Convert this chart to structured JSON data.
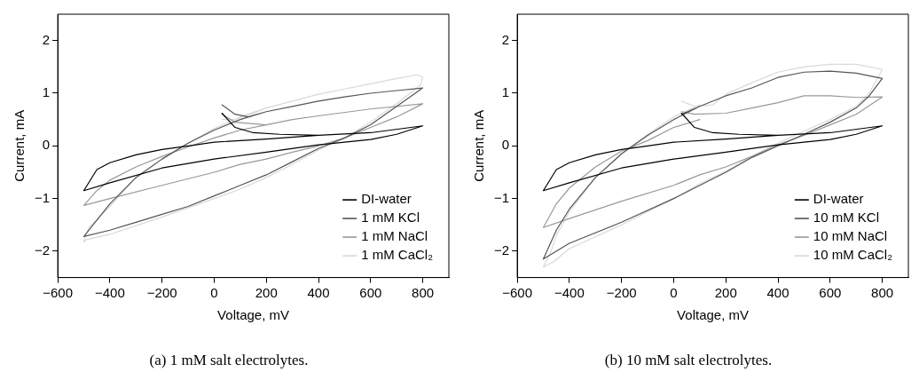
{
  "chart_data": [
    {
      "type": "line",
      "title": "(a) 1 mM salt electrolytes.",
      "xlabel": "Voltage, mV",
      "ylabel": "Current, mA",
      "xlim": [
        -600,
        900
      ],
      "xticks": [
        -600,
        -400,
        -200,
        0,
        200,
        400,
        600,
        800
      ],
      "ylim": [
        -2.5,
        2.5
      ],
      "yticks": [
        -2,
        -1,
        0,
        1,
        2
      ],
      "legend": "bottom right",
      "marker": "none",
      "line_style": "solid",
      "series": [
        {
          "name": "DI-water",
          "color": "#000000",
          "x": [
            30,
            80,
            150,
            250,
            400,
            600,
            800,
            700,
            600,
            400,
            200,
            0,
            -200,
            -400,
            -500,
            -450,
            -400,
            -300,
            -200,
            -100,
            0,
            200,
            400,
            600,
            800
          ],
          "values": [
            0.62,
            0.35,
            0.25,
            0.22,
            0.2,
            0.25,
            0.38,
            0.22,
            0.12,
            0.02,
            -0.12,
            -0.25,
            -0.42,
            -0.7,
            -0.85,
            -0.45,
            -0.32,
            -0.17,
            -0.07,
            0.0,
            0.07,
            0.13,
            0.2,
            0.25,
            0.38
          ]
        },
        {
          "name": "1 mM KCl",
          "color": "#555555",
          "x": [
            30,
            80,
            130,
            200,
            300,
            400,
            500,
            600,
            700,
            800,
            700,
            600,
            500,
            400,
            300,
            200,
            100,
            0,
            -100,
            -200,
            -300,
            -400,
            -500,
            -400,
            -300,
            -200,
            -100,
            0,
            100,
            200
          ],
          "values": [
            0.78,
            0.6,
            0.55,
            0.65,
            0.75,
            0.85,
            0.93,
            1.0,
            1.05,
            1.1,
            0.75,
            0.4,
            0.15,
            -0.05,
            -0.3,
            -0.55,
            -0.75,
            -0.95,
            -1.15,
            -1.3,
            -1.45,
            -1.6,
            -1.72,
            -1.1,
            -0.6,
            -0.25,
            0.05,
            0.3,
            0.5,
            0.65
          ]
        },
        {
          "name": "1 mM NaCl",
          "color": "#999999",
          "x": [
            30,
            80,
            200,
            300,
            400,
            600,
            800,
            700,
            600,
            500,
            400,
            300,
            200,
            100,
            0,
            -200,
            -400,
            -500,
            -450,
            -400,
            -300,
            -200,
            -100,
            0,
            100,
            200
          ],
          "values": [
            0.6,
            0.45,
            0.4,
            0.5,
            0.57,
            0.7,
            0.8,
            0.55,
            0.35,
            0.15,
            0.0,
            -0.12,
            -0.25,
            -0.35,
            -0.5,
            -0.75,
            -1.0,
            -1.13,
            -0.85,
            -0.65,
            -0.4,
            -0.2,
            -0.02,
            0.15,
            0.3,
            0.4
          ]
        },
        {
          "name": "1 mM CaCl₂",
          "color": "#d9d9d9",
          "x": [
            30,
            80,
            150,
            200,
            300,
            400,
            500,
            600,
            700,
            780,
            800,
            790,
            700,
            600,
            500,
            400,
            300,
            200,
            100,
            0,
            -200,
            -400,
            -490,
            -500,
            -495,
            -480,
            -400,
            -300,
            -200,
            -100,
            0,
            100,
            200
          ],
          "values": [
            0.5,
            0.5,
            0.62,
            0.72,
            0.85,
            0.98,
            1.08,
            1.18,
            1.28,
            1.35,
            1.3,
            1.15,
            0.8,
            0.45,
            0.15,
            -0.08,
            -0.35,
            -0.6,
            -0.82,
            -1.0,
            -1.35,
            -1.68,
            -1.78,
            -1.82,
            -1.72,
            -1.55,
            -1.15,
            -0.6,
            -0.25,
            0.05,
            0.33,
            0.55,
            0.72
          ]
        }
      ]
    },
    {
      "type": "line",
      "title": "(b) 10 mM salt electrolytes.",
      "xlabel": "Voltage, mV",
      "ylabel": "Current, mA",
      "xlim": [
        -600,
        900
      ],
      "xticks": [
        -600,
        -400,
        -200,
        0,
        200,
        400,
        600,
        800
      ],
      "ylim": [
        -2.5,
        2.5
      ],
      "yticks": [
        -2,
        -1,
        0,
        1,
        2
      ],
      "legend": "bottom right",
      "marker": "none",
      "line_style": "solid",
      "series": [
        {
          "name": "DI-water",
          "color": "#000000",
          "x": [
            30,
            80,
            150,
            250,
            400,
            600,
            800,
            700,
            600,
            400,
            200,
            0,
            -200,
            -400,
            -500,
            -450,
            -400,
            -300,
            -200,
            -100,
            0,
            200,
            400,
            600,
            800
          ],
          "values": [
            0.62,
            0.35,
            0.25,
            0.22,
            0.2,
            0.25,
            0.38,
            0.22,
            0.12,
            0.02,
            -0.12,
            -0.25,
            -0.42,
            -0.7,
            -0.85,
            -0.45,
            -0.32,
            -0.17,
            -0.07,
            0.0,
            0.07,
            0.13,
            0.2,
            0.25,
            0.38
          ]
        },
        {
          "name": "10 mM KCl",
          "color": "#555555",
          "x": [
            30,
            100,
            200,
            300,
            400,
            500,
            600,
            700,
            800,
            750,
            700,
            600,
            500,
            400,
            300,
            200,
            100,
            0,
            -200,
            -400,
            -500,
            -450,
            -400,
            -300,
            -200,
            -100,
            0,
            100
          ],
          "values": [
            0.6,
            0.75,
            0.95,
            1.1,
            1.3,
            1.4,
            1.42,
            1.38,
            1.28,
            0.95,
            0.72,
            0.45,
            0.22,
            0.0,
            -0.22,
            -0.5,
            -0.75,
            -1.0,
            -1.45,
            -1.85,
            -2.15,
            -1.6,
            -1.2,
            -0.6,
            -0.15,
            0.2,
            0.5,
            0.75
          ]
        },
        {
          "name": "10 mM NaCl",
          "color": "#999999",
          "x": [
            30,
            80,
            200,
            300,
            400,
            500,
            600,
            700,
            800,
            700,
            600,
            500,
            400,
            300,
            200,
            100,
            0,
            -200,
            -400,
            -500,
            -450,
            -400,
            -300,
            -200,
            -100,
            0,
            100
          ],
          "values": [
            0.65,
            0.6,
            0.62,
            0.72,
            0.82,
            0.95,
            0.95,
            0.92,
            0.93,
            0.6,
            0.4,
            0.2,
            0.02,
            -0.2,
            -0.4,
            -0.55,
            -0.75,
            -1.05,
            -1.38,
            -1.55,
            -1.1,
            -0.8,
            -0.4,
            -0.1,
            0.1,
            0.35,
            0.5
          ]
        },
        {
          "name": "10 mM CaCl₂",
          "color": "#d9d9d9",
          "x": [
            30,
            80,
            150,
            200,
            300,
            400,
            500,
            600,
            700,
            800,
            750,
            700,
            600,
            500,
            400,
            300,
            200,
            100,
            0,
            -200,
            -400,
            -460,
            -500,
            -470,
            -450,
            -400,
            -300,
            -200,
            -100,
            0,
            100
          ],
          "values": [
            0.85,
            0.75,
            0.78,
            0.98,
            1.2,
            1.4,
            1.5,
            1.55,
            1.55,
            1.45,
            1.0,
            0.75,
            0.5,
            0.28,
            0.05,
            -0.2,
            -0.48,
            -0.72,
            -1.0,
            -1.5,
            -1.95,
            -2.2,
            -2.3,
            -2.0,
            -1.7,
            -1.25,
            -0.6,
            -0.15,
            0.22,
            0.55,
            0.78
          ]
        }
      ]
    }
  ]
}
